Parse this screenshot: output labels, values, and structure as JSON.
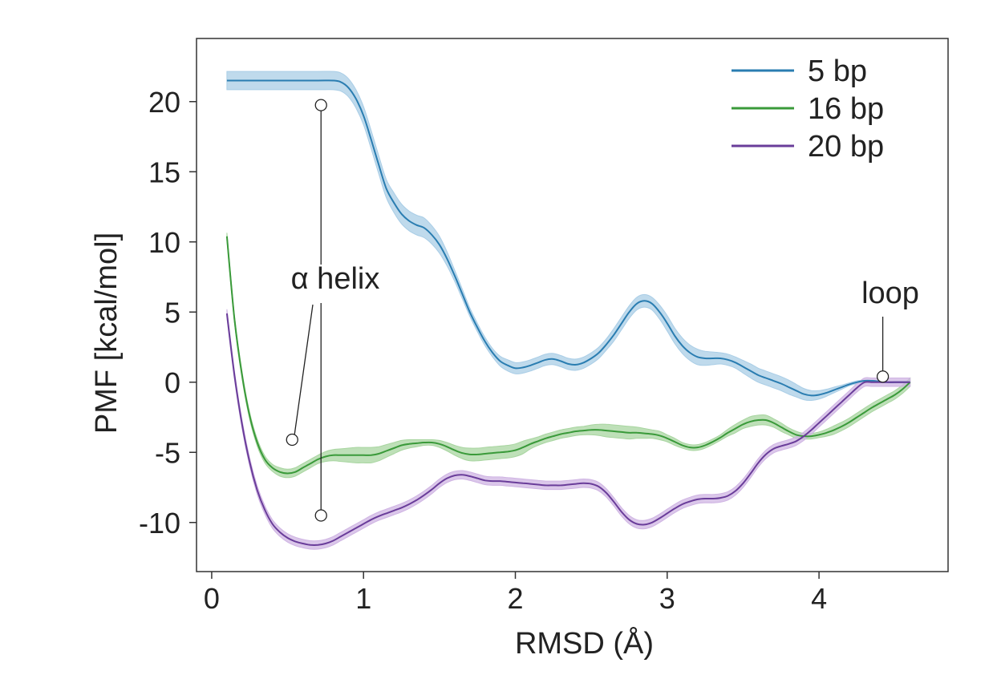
{
  "chart_data": {
    "type": "line",
    "xlabel": "RMSD (Å)",
    "ylabel": "PMF [kcal/mol]",
    "xlim": [
      -0.1,
      4.85
    ],
    "ylim": [
      -13.5,
      24.5
    ],
    "x_ticks": [
      0,
      1,
      2,
      3,
      4
    ],
    "y_ticks": [
      20,
      15,
      10,
      5,
      0,
      -5,
      -10
    ],
    "grid": false,
    "legend_position": "top-right",
    "shaded_uncertainty_band": true,
    "series": [
      {
        "name": "5 bp",
        "color": "#2a7db1",
        "band_color": "#a9cde6",
        "x": [
          0.1,
          0.3,
          0.5,
          0.7,
          0.8,
          0.85,
          0.9,
          0.95,
          1.0,
          1.05,
          1.1,
          1.15,
          1.2,
          1.25,
          1.3,
          1.35,
          1.4,
          1.45,
          1.5,
          1.55,
          1.6,
          1.65,
          1.7,
          1.75,
          1.8,
          1.85,
          1.9,
          1.95,
          2.0,
          2.05,
          2.1,
          2.15,
          2.2,
          2.25,
          2.3,
          2.35,
          2.4,
          2.45,
          2.5,
          2.55,
          2.6,
          2.65,
          2.7,
          2.75,
          2.8,
          2.85,
          2.9,
          2.95,
          3.0,
          3.05,
          3.1,
          3.15,
          3.2,
          3.25,
          3.3,
          3.35,
          3.4,
          3.45,
          3.5,
          3.55,
          3.6,
          3.65,
          3.7,
          3.75,
          3.8,
          3.85,
          3.9,
          3.95,
          4.0,
          4.05,
          4.1,
          4.15,
          4.2,
          4.25,
          4.3,
          4.35,
          4.4,
          4.45,
          4.5,
          4.55,
          4.6
        ],
        "y": [
          21.5,
          21.5,
          21.5,
          21.5,
          21.5,
          21.4,
          21.0,
          20.2,
          19.0,
          17.3,
          15.5,
          13.8,
          12.8,
          12.0,
          11.5,
          11.2,
          11.0,
          10.5,
          9.8,
          8.8,
          7.6,
          6.3,
          5.0,
          3.9,
          2.9,
          2.1,
          1.5,
          1.2,
          1.0,
          1.05,
          1.2,
          1.4,
          1.6,
          1.65,
          1.5,
          1.3,
          1.25,
          1.4,
          1.7,
          2.1,
          2.7,
          3.4,
          4.2,
          5.0,
          5.6,
          5.8,
          5.6,
          5.0,
          4.2,
          3.3,
          2.6,
          2.1,
          1.8,
          1.7,
          1.7,
          1.7,
          1.6,
          1.4,
          1.1,
          0.8,
          0.5,
          0.3,
          0.1,
          -0.1,
          -0.35,
          -0.6,
          -0.85,
          -0.95,
          -0.9,
          -0.75,
          -0.55,
          -0.35,
          -0.15,
          0.0,
          0.1,
          0.1,
          0.05,
          0.0,
          0.0,
          0.0,
          0.0
        ],
        "band": [
          0.65,
          0.65,
          0.65,
          0.65,
          0.65,
          0.65,
          0.65,
          0.65,
          0.65,
          0.65,
          0.65,
          0.65,
          0.7,
          0.7,
          0.7,
          0.7,
          0.7,
          0.65,
          0.6,
          0.5,
          0.4,
          0.35,
          0.3,
          0.3,
          0.3,
          0.3,
          0.35,
          0.4,
          0.4,
          0.4,
          0.4,
          0.4,
          0.4,
          0.4,
          0.4,
          0.4,
          0.4,
          0.4,
          0.4,
          0.4,
          0.4,
          0.45,
          0.45,
          0.45,
          0.45,
          0.45,
          0.45,
          0.5,
          0.55,
          0.55,
          0.55,
          0.55,
          0.55,
          0.5,
          0.45,
          0.4,
          0.4,
          0.4,
          0.45,
          0.5,
          0.5,
          0.5,
          0.5,
          0.5,
          0.5,
          0.45,
          0.4,
          0.35,
          0.3,
          0.25,
          0.2,
          0.15,
          0.1,
          0.1,
          0.05,
          0.05,
          0.05,
          0.05,
          0.05,
          0.05,
          0.05
        ]
      },
      {
        "name": "16 bp",
        "color": "#3a9a3a",
        "band_color": "#a8d5a0",
        "x": [
          0.1,
          0.15,
          0.2,
          0.25,
          0.3,
          0.35,
          0.4,
          0.45,
          0.5,
          0.55,
          0.6,
          0.65,
          0.7,
          0.75,
          0.8,
          0.85,
          0.9,
          0.95,
          1.0,
          1.05,
          1.1,
          1.15,
          1.2,
          1.25,
          1.3,
          1.35,
          1.4,
          1.45,
          1.5,
          1.55,
          1.6,
          1.65,
          1.7,
          1.75,
          1.8,
          1.85,
          1.9,
          1.95,
          2.0,
          2.05,
          2.1,
          2.15,
          2.2,
          2.25,
          2.3,
          2.35,
          2.4,
          2.45,
          2.5,
          2.55,
          2.6,
          2.65,
          2.7,
          2.75,
          2.8,
          2.85,
          2.9,
          2.95,
          3.0,
          3.05,
          3.1,
          3.15,
          3.2,
          3.25,
          3.3,
          3.35,
          3.4,
          3.45,
          3.5,
          3.55,
          3.6,
          3.65,
          3.7,
          3.75,
          3.8,
          3.85,
          3.9,
          3.95,
          4.0,
          4.05,
          4.1,
          4.15,
          4.2,
          4.25,
          4.3,
          4.35,
          4.4,
          4.45,
          4.5,
          4.55,
          4.6
        ],
        "y": [
          10.4,
          4.5,
          0.5,
          -2.4,
          -4.3,
          -5.5,
          -6.1,
          -6.4,
          -6.5,
          -6.4,
          -6.1,
          -5.8,
          -5.5,
          -5.3,
          -5.2,
          -5.2,
          -5.2,
          -5.2,
          -5.2,
          -5.2,
          -5.1,
          -4.9,
          -4.7,
          -4.5,
          -4.4,
          -4.35,
          -4.3,
          -4.3,
          -4.4,
          -4.6,
          -4.85,
          -5.05,
          -5.15,
          -5.15,
          -5.1,
          -5.05,
          -5.0,
          -4.95,
          -4.85,
          -4.65,
          -4.4,
          -4.2,
          -4.0,
          -3.85,
          -3.7,
          -3.6,
          -3.5,
          -3.45,
          -3.4,
          -3.4,
          -3.45,
          -3.5,
          -3.55,
          -3.6,
          -3.6,
          -3.65,
          -3.7,
          -3.8,
          -4.0,
          -4.25,
          -4.5,
          -4.65,
          -4.65,
          -4.5,
          -4.25,
          -3.95,
          -3.6,
          -3.3,
          -3.0,
          -2.8,
          -2.7,
          -2.7,
          -2.9,
          -3.2,
          -3.5,
          -3.75,
          -3.85,
          -3.85,
          -3.75,
          -3.6,
          -3.4,
          -3.15,
          -2.85,
          -2.5,
          -2.15,
          -1.8,
          -1.5,
          -1.2,
          -0.9,
          -0.5,
          0.0
        ],
        "band": [
          0.25,
          0.25,
          0.25,
          0.25,
          0.25,
          0.25,
          0.25,
          0.3,
          0.3,
          0.3,
          0.3,
          0.3,
          0.3,
          0.35,
          0.4,
          0.45,
          0.5,
          0.55,
          0.55,
          0.55,
          0.5,
          0.45,
          0.4,
          0.35,
          0.3,
          0.25,
          0.2,
          0.2,
          0.25,
          0.3,
          0.35,
          0.4,
          0.45,
          0.45,
          0.45,
          0.45,
          0.45,
          0.45,
          0.45,
          0.45,
          0.35,
          0.3,
          0.3,
          0.3,
          0.3,
          0.3,
          0.3,
          0.3,
          0.35,
          0.4,
          0.45,
          0.45,
          0.45,
          0.45,
          0.4,
          0.35,
          0.3,
          0.3,
          0.25,
          0.25,
          0.2,
          0.2,
          0.2,
          0.2,
          0.2,
          0.2,
          0.25,
          0.3,
          0.3,
          0.35,
          0.35,
          0.35,
          0.3,
          0.3,
          0.25,
          0.25,
          0.2,
          0.2,
          0.2,
          0.25,
          0.3,
          0.3,
          0.3,
          0.3,
          0.3,
          0.3,
          0.3,
          0.3,
          0.3,
          0.3,
          0.3
        ]
      },
      {
        "name": "20 bp",
        "color": "#6a3d9a",
        "band_color": "#cfb4e3",
        "x": [
          0.1,
          0.15,
          0.2,
          0.25,
          0.3,
          0.35,
          0.4,
          0.45,
          0.5,
          0.55,
          0.6,
          0.65,
          0.7,
          0.75,
          0.8,
          0.85,
          0.9,
          0.95,
          1.0,
          1.05,
          1.1,
          1.15,
          1.2,
          1.25,
          1.3,
          1.35,
          1.4,
          1.45,
          1.5,
          1.55,
          1.6,
          1.65,
          1.7,
          1.75,
          1.8,
          1.85,
          1.9,
          1.95,
          2.0,
          2.05,
          2.1,
          2.15,
          2.2,
          2.25,
          2.3,
          2.35,
          2.4,
          2.45,
          2.5,
          2.55,
          2.6,
          2.65,
          2.7,
          2.75,
          2.8,
          2.85,
          2.9,
          2.95,
          3.0,
          3.05,
          3.1,
          3.15,
          3.2,
          3.25,
          3.3,
          3.35,
          3.4,
          3.45,
          3.5,
          3.55,
          3.6,
          3.65,
          3.7,
          3.75,
          3.8,
          3.85,
          3.9,
          3.95,
          4.0,
          4.05,
          4.1,
          4.15,
          4.2,
          4.25,
          4.3,
          4.35,
          4.4,
          4.45,
          4.5,
          4.55,
          4.6
        ],
        "y": [
          4.9,
          0.5,
          -3.0,
          -5.7,
          -7.7,
          -9.1,
          -10.1,
          -10.7,
          -11.1,
          -11.35,
          -11.5,
          -11.6,
          -11.6,
          -11.5,
          -11.3,
          -11.0,
          -10.7,
          -10.4,
          -10.1,
          -9.8,
          -9.55,
          -9.35,
          -9.15,
          -8.95,
          -8.7,
          -8.4,
          -8.05,
          -7.65,
          -7.2,
          -6.85,
          -6.65,
          -6.6,
          -6.7,
          -6.85,
          -7.0,
          -7.05,
          -7.05,
          -7.1,
          -7.15,
          -7.2,
          -7.25,
          -7.3,
          -7.35,
          -7.35,
          -7.35,
          -7.3,
          -7.25,
          -7.2,
          -7.25,
          -7.45,
          -7.9,
          -8.55,
          -9.25,
          -9.8,
          -10.1,
          -10.15,
          -10.0,
          -9.7,
          -9.35,
          -9.0,
          -8.7,
          -8.5,
          -8.35,
          -8.3,
          -8.3,
          -8.25,
          -8.1,
          -7.75,
          -7.2,
          -6.5,
          -5.75,
          -5.15,
          -4.75,
          -4.55,
          -4.4,
          -4.2,
          -3.85,
          -3.4,
          -2.9,
          -2.4,
          -1.9,
          -1.4,
          -0.9,
          -0.4,
          0.0,
          0.0,
          0.0,
          0.0,
          0.0,
          0.0,
          0.0
        ],
        "band": [
          0.3,
          0.3,
          0.3,
          0.3,
          0.3,
          0.3,
          0.3,
          0.3,
          0.3,
          0.3,
          0.3,
          0.3,
          0.3,
          0.3,
          0.3,
          0.3,
          0.3,
          0.3,
          0.3,
          0.3,
          0.3,
          0.3,
          0.3,
          0.3,
          0.3,
          0.3,
          0.3,
          0.3,
          0.3,
          0.3,
          0.3,
          0.3,
          0.3,
          0.3,
          0.3,
          0.3,
          0.3,
          0.3,
          0.3,
          0.3,
          0.3,
          0.3,
          0.3,
          0.3,
          0.3,
          0.3,
          0.3,
          0.3,
          0.3,
          0.3,
          0.3,
          0.3,
          0.3,
          0.3,
          0.3,
          0.3,
          0.3,
          0.3,
          0.3,
          0.3,
          0.3,
          0.3,
          0.3,
          0.3,
          0.3,
          0.3,
          0.3,
          0.3,
          0.3,
          0.3,
          0.3,
          0.3,
          0.3,
          0.3,
          0.3,
          0.3,
          0.3,
          0.3,
          0.3,
          0.3,
          0.3,
          0.3,
          0.3,
          0.3,
          0.3,
          0.3,
          0.3,
          0.3,
          0.3,
          0.3,
          0.3
        ]
      }
    ],
    "annotations": [
      {
        "text": "α helix",
        "pointers": [
          {
            "label_anchor": [
              0.72,
              7.0
            ],
            "target": [
              0.72,
              19.75
            ]
          },
          {
            "label_anchor": [
              0.72,
              6.0
            ],
            "target": [
              0.72,
              -9.5
            ]
          },
          {
            "label_anchor": [
              0.65,
              5.0
            ],
            "target": [
              0.53,
              -4.1
            ]
          }
        ]
      },
      {
        "text": "loop",
        "pointers": [
          {
            "label_anchor": [
              4.42,
              4.5
            ],
            "target": [
              4.42,
              0.4
            ]
          }
        ]
      }
    ]
  }
}
